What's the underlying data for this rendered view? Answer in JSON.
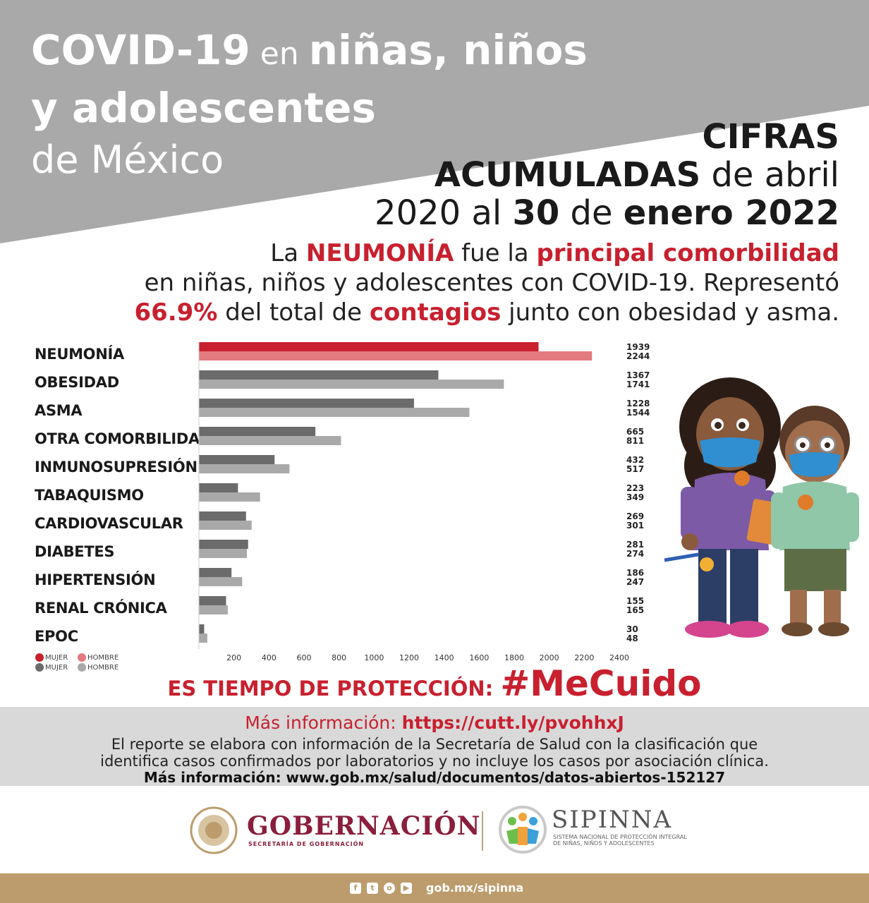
{
  "header": {
    "title_a": "COVID-19",
    "title_b": " en ",
    "title_c": "niñas, niños",
    "title_line2": "y adolescentes",
    "title_line3": "de México"
  },
  "period": {
    "l1": "CIFRAS",
    "l2_bold": "ACUMULADAS",
    "l2_rest": " de abril",
    "l3_a": "2020 al ",
    "l3_b": "30",
    "l3_c": " de ",
    "l3_d": "enero 2022"
  },
  "intro": {
    "l1_a": "La ",
    "l1_b": "NEUMONÍA",
    "l1_c": " fue la ",
    "l1_d": "principal comorbilidad",
    "l2": "en niñas, niños y adolescentes con COVID-19. Representó",
    "l3_a": "66.9%",
    "l3_b": " del total de ",
    "l3_c": "contagios",
    "l3_d": " junto con obesidad y asma."
  },
  "chart_data": {
    "type": "bar",
    "orientation": "horizontal",
    "categories": [
      "NEUMONÍA",
      "OBESIDAD",
      "ASMA",
      "OTRA COMORBILIDAD",
      "INMUNOSUPRESIÓN",
      "TABAQUISMO",
      "CARDIOVASCULAR",
      "DIABETES",
      "HIPERTENSIÓN",
      "RENAL CRÓNICA",
      "EPOC"
    ],
    "series": [
      {
        "name": "MUJER",
        "values": [
          1939,
          1367,
          1228,
          665,
          432,
          223,
          269,
          281,
          186,
          155,
          30
        ]
      },
      {
        "name": "HOMBRE",
        "values": [
          2244,
          1741,
          1544,
          811,
          517,
          349,
          301,
          274,
          247,
          165,
          48
        ]
      }
    ],
    "xticks": [
      200,
      400,
      600,
      800,
      1000,
      1200,
      1400,
      1600,
      1800,
      2000,
      2200,
      2400
    ],
    "xlim": [
      0,
      2400
    ],
    "grid": false,
    "legend": {
      "placement": "bottom-left",
      "entries": [
        {
          "label": "MUJER",
          "color": "#c8202f"
        },
        {
          "label": "HOMBRE",
          "color": "#e27a80"
        },
        {
          "label": "MUJER",
          "color": "#6b6b6b"
        },
        {
          "label": "HOMBRE",
          "color": "#a9a9a9"
        }
      ]
    },
    "colors": {
      "highlight_mujer": "#c8202f",
      "highlight_hombre": "#e27a80",
      "mujer": "#6b6b6b",
      "hombre": "#a9a9a9"
    }
  },
  "slogan": {
    "a": "ES TIEMPO DE PROTECCIÓN: ",
    "b": "#MeCuido"
  },
  "info": {
    "more_label": "Más información: ",
    "more_link": "https://cutt.ly/pvohhxJ",
    "note_l1": "El reporte se elabora con información de la Secretaría de Salud con la clasificación que",
    "note_l2": "identifica casos confirmados por laboratorios y no incluye los casos por asociación clínica.",
    "more2": "Más información: www.gob.mx/salud/documentos/datos-abiertos-152127"
  },
  "logos": {
    "gob": "GOBERNACIÓN",
    "gob_sub": "SECRETARÍA DE GOBERNACIÓN",
    "sip": "SIPINNA",
    "sip_sub": "SISTEMA NACIONAL DE PROTECCIÓN INTEGRAL DE NIÑAS, NIÑOS Y ADOLESCENTES"
  },
  "footer": {
    "url": "gob.mx/sipinna",
    "icons": [
      "facebook-icon",
      "twitter-icon",
      "instagram-icon",
      "youtube-icon"
    ]
  }
}
